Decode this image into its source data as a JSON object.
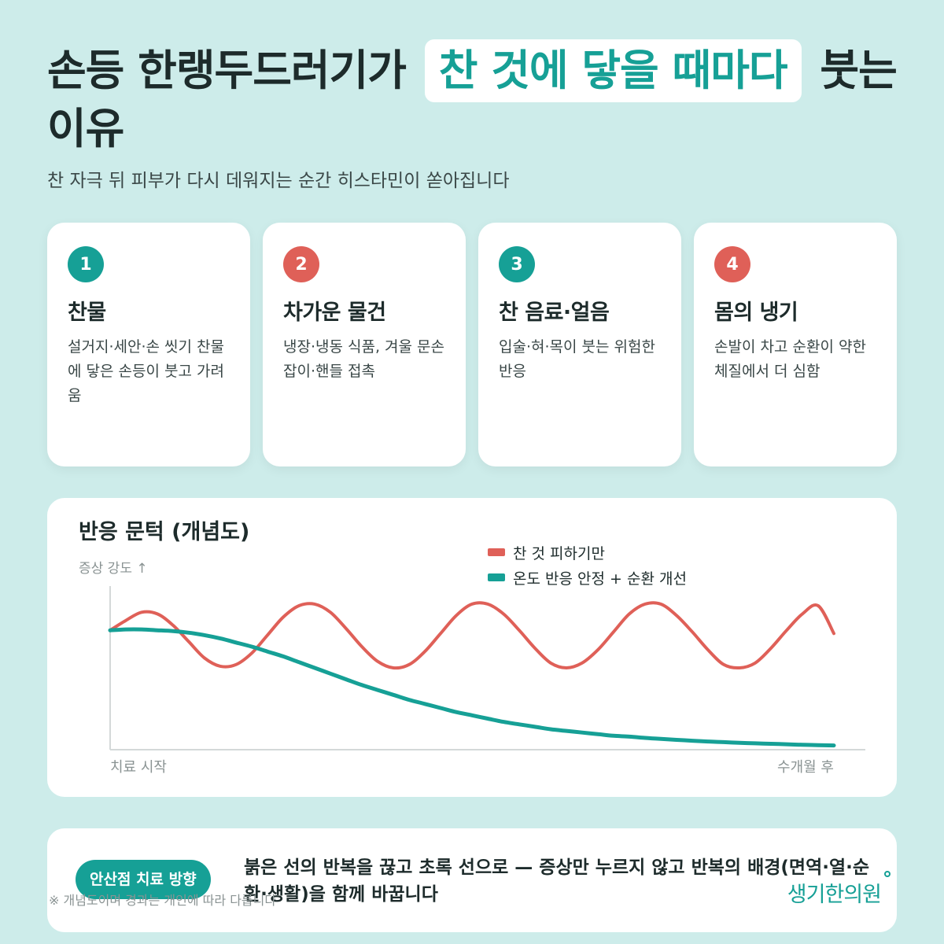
{
  "header": {
    "title_before": "손등 한랭두드러기가",
    "title_highlight": "찬 것에 닿을 때마다",
    "title_after": "붓는 이유",
    "subtitle": "찬 자극 뒤 피부가 다시 데워지는 순간 히스타민이 쏟아집니다"
  },
  "cards": [
    {
      "num": "1",
      "title": "찬물",
      "desc": "설거지·세안·손 씻기 찬물에 닿은 손등이 붓고 가려움",
      "color": "#16a096"
    },
    {
      "num": "2",
      "title": "차가운 물건",
      "desc": "냉장·냉동 식품, 겨울 문손잡이·핸들 접촉",
      "color": "#df6058"
    },
    {
      "num": "3",
      "title": "찬 음료·얼음",
      "desc": "입술·혀·목이 붓는 위험한 반응",
      "color": "#16a096"
    },
    {
      "num": "4",
      "title": "몸의 냉기",
      "desc": "손발이 차고 순환이 약한 체질에서 더 심함",
      "color": "#df6058"
    }
  ],
  "chart_data": {
    "type": "line",
    "title": "반응 문턱 (개념도)",
    "ylabel": "증상 강도 ↑",
    "x_start_label": "치료 시작",
    "x_end_label": "수개월 후",
    "x": [
      0,
      0.5,
      1,
      1.5,
      2,
      2.5,
      3,
      3.5,
      4,
      4.5,
      5,
      5.5,
      6,
      6.5,
      7,
      7.5,
      8,
      8.5,
      9,
      9.5,
      10,
      10.5,
      11,
      11.5,
      12,
      12.5,
      13,
      13.5,
      14,
      14.5,
      15,
      15.5,
      16,
      16.5,
      17,
      17.5,
      18,
      18.5,
      19,
      19.5,
      20,
      20.5,
      21,
      21.5,
      22,
      22.5,
      23
    ],
    "ylim": [
      0,
      10
    ],
    "legend_position": "top-right",
    "grid": false,
    "series": [
      {
        "name": "찬 것 피하기만",
        "color": "#df6058",
        "values": [
          7.3,
          7.9,
          8.4,
          8.3,
          7.6,
          6.6,
          5.6,
          5.1,
          5.2,
          5.9,
          7.0,
          8.1,
          8.8,
          8.9,
          8.4,
          7.4,
          6.3,
          5.4,
          5.0,
          5.2,
          6.0,
          7.1,
          8.2,
          8.9,
          8.9,
          8.3,
          7.3,
          6.2,
          5.3,
          5.0,
          5.3,
          6.1,
          7.2,
          8.3,
          8.9,
          8.9,
          8.2,
          7.2,
          6.1,
          5.2,
          5.0,
          5.3,
          6.2,
          7.3,
          8.3,
          8.8,
          7.1
        ]
      },
      {
        "name": "온도 반응 안정 + 순환 개선",
        "color": "#16a096",
        "values": [
          7.3,
          7.35,
          7.35,
          7.3,
          7.25,
          7.15,
          7.0,
          6.8,
          6.55,
          6.3,
          6.0,
          5.7,
          5.35,
          5.0,
          4.65,
          4.3,
          3.95,
          3.65,
          3.35,
          3.05,
          2.8,
          2.55,
          2.3,
          2.1,
          1.9,
          1.7,
          1.55,
          1.4,
          1.25,
          1.15,
          1.05,
          0.95,
          0.85,
          0.8,
          0.72,
          0.66,
          0.6,
          0.55,
          0.5,
          0.46,
          0.42,
          0.39,
          0.36,
          0.33,
          0.3,
          0.28,
          0.26
        ]
      }
    ]
  },
  "footer": {
    "badge": "안산점 치료 방향",
    "text": "붉은 선의 반복을 끊고 초록 선으로 — 증상만 누르지 않고 반복의 배경(면역·열·순환·생활)을 함께 바꿉니다",
    "footnote": "※ 개념도이며 경과는 개인에 따라 다릅니다",
    "logo": "생기한의원"
  }
}
